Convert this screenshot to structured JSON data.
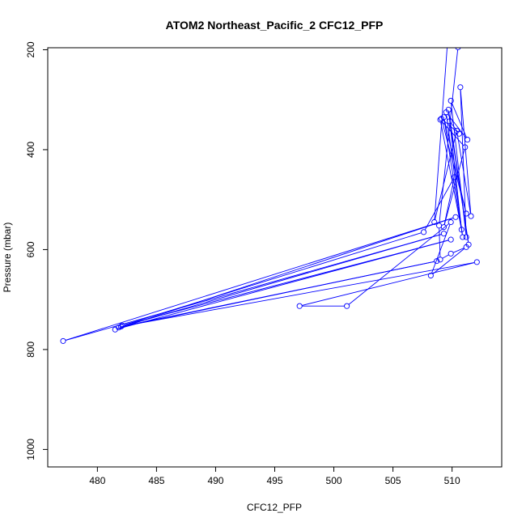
{
  "chart_data": {
    "type": "line",
    "title": "ATOM2 Northeast_Pacific_2 CFC12_PFP",
    "xlabel": "CFC12_PFP",
    "ylabel": "Pressure (mbar)",
    "xlim": [
      475.8,
      514.2
    ],
    "ylim": [
      1035,
      196
    ],
    "y_inverted": true,
    "x_ticks": [
      480,
      485,
      490,
      495,
      500,
      505,
      510
    ],
    "y_ticks": [
      200,
      400,
      600,
      800,
      1000
    ],
    "grid": false,
    "line_color": "#0000ff",
    "marker": "open-circle",
    "series": [
      {
        "points": [
          [
            509.6,
            190
          ],
          [
            508.5,
            545
          ],
          [
            510.4,
            362
          ],
          [
            511.6,
            533
          ],
          [
            510.7,
            275
          ],
          [
            511.2,
            575
          ],
          [
            509.9,
            302
          ],
          [
            511.3,
            380
          ],
          [
            509.5,
            325
          ],
          [
            510.9,
            575
          ],
          [
            509.3,
            335
          ],
          [
            511.2,
            528
          ],
          [
            509.1,
            338
          ],
          [
            510.6,
            368
          ],
          [
            509.8,
            343
          ],
          [
            511.4,
            590
          ],
          [
            509.7,
            320
          ],
          [
            510.8,
            560
          ],
          [
            509.0,
            340
          ],
          [
            511.1,
            395
          ],
          [
            509.3,
            555
          ],
          [
            510.2,
            455
          ],
          [
            507.6,
            565
          ],
          [
            482.1,
            752
          ],
          [
            509.9,
            580
          ],
          [
            481.5,
            760
          ],
          [
            510.3,
            535
          ],
          [
            477.1,
            783
          ],
          [
            509.3,
            568
          ],
          [
            481.8,
            756
          ],
          [
            508.7,
            623
          ],
          [
            482.0,
            754
          ],
          [
            512.1,
            625
          ],
          [
            497.1,
            713
          ],
          [
            501.1,
            713
          ],
          [
            509.9,
            545
          ],
          [
            508.2,
            652
          ],
          [
            511.2,
            595
          ],
          [
            509.9,
            608
          ],
          [
            509.0,
            620
          ],
          [
            508.9,
            552
          ],
          [
            510.5,
            195
          ],
          [
            511.3,
            190
          ]
        ]
      }
    ]
  }
}
